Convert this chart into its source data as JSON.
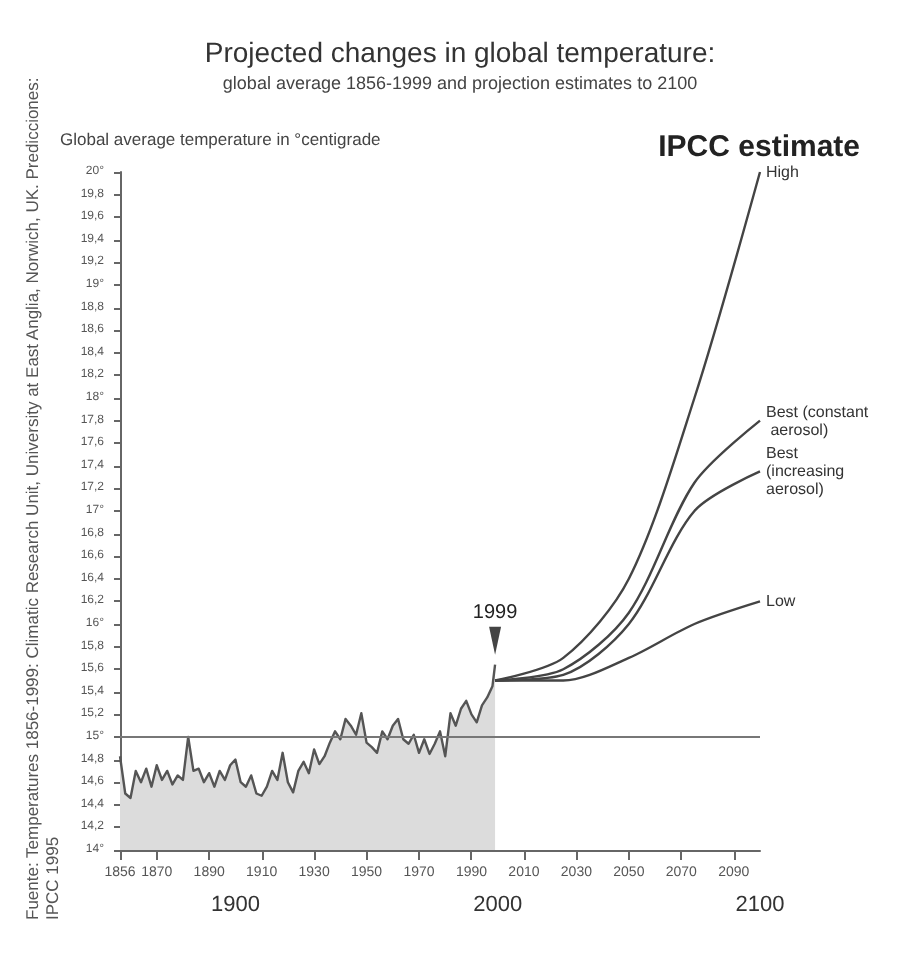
{
  "chart_data": {
    "type": "line",
    "title": "Projected changes in global temperature:",
    "subtitle": "global average 1856-1999 and projection estimates to 2100",
    "ylabel": "Global average temperature in °centigrade",
    "annotations": [
      "IPCC estimate",
      "Fuente: Temperatures 1856-1999: Climatic Research Unit, University at East Anglia, Norwich, UK. Predicciones: IPCC 1995",
      {
        "text": "1999",
        "x": 1999,
        "y": 15.64
      }
    ],
    "xlim": [
      1856,
      2100
    ],
    "xticks": [
      1856,
      1870,
      1890,
      1910,
      1930,
      1950,
      1970,
      1990,
      2010,
      2030,
      2050,
      2070,
      2090
    ],
    "x2lim": [
      1856,
      2100
    ],
    "x2ticks": [
      1900,
      2000,
      2100
    ],
    "ylim": [
      14,
      20
    ],
    "yticks": [
      {
        "value": 14,
        "label": "14°"
      },
      {
        "value": 14.2,
        "label": "14,2"
      },
      {
        "value": 14.4,
        "label": "14,4"
      },
      {
        "value": 14.6,
        "label": "14,6"
      },
      {
        "value": 14.8,
        "label": "14,8"
      },
      {
        "value": 15,
        "label": "15°"
      },
      {
        "value": 15.2,
        "label": "15,2"
      },
      {
        "value": 15.4,
        "label": "15,4"
      },
      {
        "value": 15.6,
        "label": "15,6"
      },
      {
        "value": 15.8,
        "label": "15,8"
      },
      {
        "value": 16,
        "label": "16°"
      },
      {
        "value": 16.2,
        "label": "16,2"
      },
      {
        "value": 16.4,
        "label": "16,4"
      },
      {
        "value": 16.6,
        "label": "16,6"
      },
      {
        "value": 16.8,
        "label": "16,8"
      },
      {
        "value": 17,
        "label": "17°"
      },
      {
        "value": 17.2,
        "label": "17,2"
      },
      {
        "value": 17.4,
        "label": "17,4"
      },
      {
        "value": 17.6,
        "label": "17,6"
      },
      {
        "value": 17.8,
        "label": "17,8"
      },
      {
        "value": 18,
        "label": "18°"
      },
      {
        "value": 18.2,
        "label": "18,2"
      },
      {
        "value": 18.4,
        "label": "18,4"
      },
      {
        "value": 18.6,
        "label": "18,6"
      },
      {
        "value": 18.8,
        "label": "18,8"
      },
      {
        "value": 19,
        "label": "19°"
      },
      {
        "value": 19.2,
        "label": "19,2"
      },
      {
        "value": 19.4,
        "label": "19,4"
      },
      {
        "value": 19.6,
        "label": "19,6"
      },
      {
        "value": 19.8,
        "label": "19,8"
      },
      {
        "value": 20,
        "label": "20°"
      }
    ],
    "grid": false,
    "marker": "none",
    "line_style": "solid",
    "ref_lines": [
      {
        "axis": "y",
        "value": 15,
        "label": null,
        "color": "#777777"
      }
    ],
    "series": [
      {
        "type": "area",
        "color": "#555555",
        "x": [
          1856,
          1858,
          1860,
          1862,
          1864,
          1866,
          1868,
          1870,
          1872,
          1874,
          1876,
          1878,
          1880,
          1882,
          1884,
          1886,
          1888,
          1890,
          1892,
          1894,
          1896,
          1898,
          1900,
          1902,
          1904,
          1906,
          1908,
          1910,
          1912,
          1914,
          1916,
          1918,
          1920,
          1922,
          1924,
          1926,
          1928,
          1930,
          1932,
          1934,
          1936,
          1938,
          1940,
          1942,
          1944,
          1946,
          1948,
          1950,
          1952,
          1954,
          1956,
          1958,
          1960,
          1962,
          1964,
          1966,
          1968,
          1970,
          1972,
          1974,
          1976,
          1978,
          1980,
          1982,
          1984,
          1986,
          1988,
          1990,
          1992,
          1994,
          1996,
          1998,
          1999
        ],
        "values": [
          14.83,
          14.5,
          14.46,
          14.7,
          14.6,
          14.72,
          14.56,
          14.75,
          14.62,
          14.7,
          14.58,
          14.66,
          14.62,
          15.0,
          14.7,
          14.72,
          14.6,
          14.68,
          14.56,
          14.7,
          14.62,
          14.75,
          14.8,
          14.6,
          14.56,
          14.66,
          14.5,
          14.48,
          14.56,
          14.7,
          14.62,
          14.86,
          14.6,
          14.51,
          14.7,
          14.78,
          14.68,
          14.89,
          14.76,
          14.83,
          14.95,
          15.05,
          14.98,
          15.16,
          15.1,
          15.02,
          15.21,
          14.95,
          14.91,
          14.86,
          15.05,
          14.98,
          15.1,
          15.16,
          14.98,
          14.94,
          15.02,
          14.86,
          14.98,
          14.85,
          14.94,
          15.05,
          14.83,
          15.21,
          15.1,
          15.25,
          15.32,
          15.2,
          15.13,
          15.28,
          15.35,
          15.45,
          15.64
        ]
      },
      {
        "name": "High",
        "color": "#444444",
        "x": [
          1999,
          2025,
          2050,
          2075,
          2100
        ],
        "values": [
          15.5,
          15.7,
          16.4,
          18.0,
          20.0
        ]
      },
      {
        "name": "Best (constant aerosol)",
        "color": "#444444",
        "x": [
          1999,
          2025,
          2050,
          2075,
          2100
        ],
        "values": [
          15.5,
          15.6,
          16.1,
          17.25,
          17.8
        ]
      },
      {
        "name": "Best (increasing aerosol)",
        "color": "#444444",
        "x": [
          1999,
          2025,
          2050,
          2075,
          2100
        ],
        "values": [
          15.5,
          15.55,
          16.0,
          17.0,
          17.35
        ]
      },
      {
        "name": "Low",
        "color": "#444444",
        "x": [
          1999,
          2025,
          2050,
          2075,
          2100
        ],
        "values": [
          15.5,
          15.5,
          15.7,
          16.0,
          16.2
        ]
      }
    ]
  }
}
